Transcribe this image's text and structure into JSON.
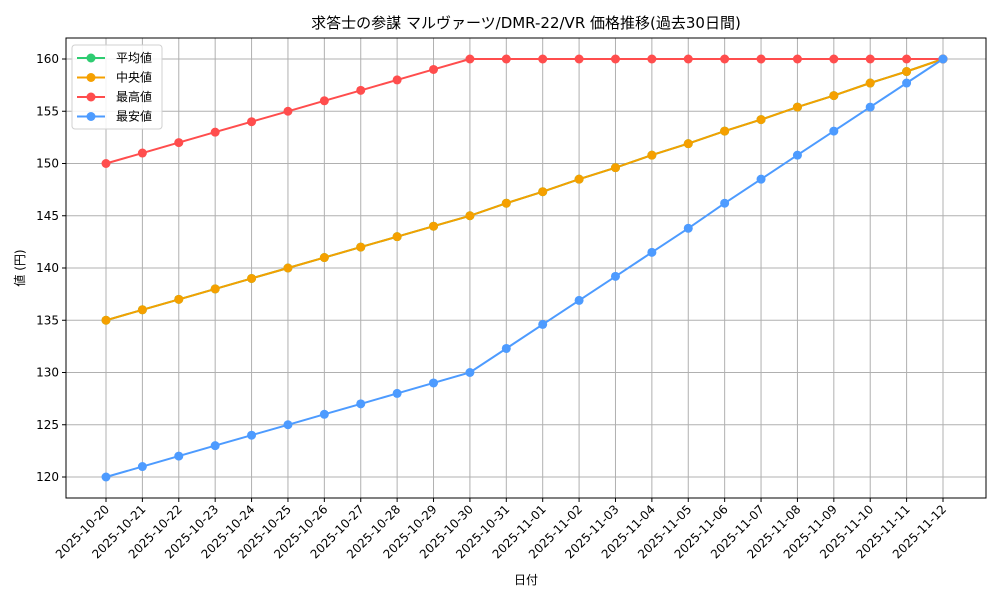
{
  "chart_data": {
    "type": "line",
    "title": "求答士の参謀 マルヴァーツ/DMR-22/VR 価格推移(過去30日間)",
    "xlabel": "日付",
    "ylabel": "値 (円)",
    "ylim": [
      118,
      162
    ],
    "yticks": [
      120,
      125,
      130,
      135,
      140,
      145,
      150,
      155,
      160
    ],
    "grid": true,
    "legend_position": "upper left",
    "x": [
      "2025-10-20",
      "2025-10-21",
      "2025-10-22",
      "2025-10-23",
      "2025-10-24",
      "2025-10-25",
      "2025-10-26",
      "2025-10-27",
      "2025-10-28",
      "2025-10-29",
      "2025-10-30",
      "2025-10-31",
      "2025-11-01",
      "2025-11-02",
      "2025-11-03",
      "2025-11-04",
      "2025-11-05",
      "2025-11-06",
      "2025-11-07",
      "2025-11-08",
      "2025-11-09",
      "2025-11-10",
      "2025-11-11",
      "2025-11-12"
    ],
    "series": [
      {
        "name": "平均値",
        "color": "#2ecc71",
        "values": [
          135,
          136,
          137,
          138,
          139,
          140,
          141,
          142,
          143,
          144,
          145,
          146.2,
          147.3,
          148.5,
          149.6,
          150.8,
          151.9,
          153.1,
          154.2,
          155.4,
          156.5,
          157.7,
          158.8,
          160
        ]
      },
      {
        "name": "中央値",
        "color": "#f5a000",
        "values": [
          135,
          136,
          137,
          138,
          139,
          140,
          141,
          142,
          143,
          144,
          145,
          146.2,
          147.3,
          148.5,
          149.6,
          150.8,
          151.9,
          153.1,
          154.2,
          155.4,
          156.5,
          157.7,
          158.8,
          160
        ]
      },
      {
        "name": "最高値",
        "color": "#ff4d4d",
        "values": [
          150,
          151,
          152,
          153,
          154,
          155,
          156,
          157,
          158,
          159,
          160,
          160,
          160,
          160,
          160,
          160,
          160,
          160,
          160,
          160,
          160,
          160,
          160,
          160
        ]
      },
      {
        "name": "最安値",
        "color": "#4d9bff",
        "values": [
          120,
          121,
          122,
          123,
          124,
          125,
          126,
          127,
          128,
          129,
          130,
          132.3,
          134.6,
          136.9,
          139.2,
          141.5,
          143.8,
          146.2,
          148.5,
          150.8,
          153.1,
          155.4,
          157.7,
          160
        ]
      }
    ]
  }
}
